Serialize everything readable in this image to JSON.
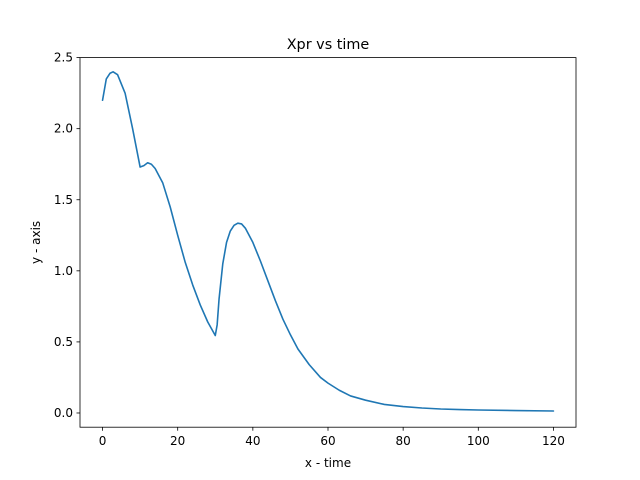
{
  "chart_data": {
    "type": "line",
    "title": "Xpr vs time",
    "xlabel": "x - time",
    "ylabel": "y - axis",
    "xlim": [
      -6,
      126
    ],
    "ylim": [
      -0.1,
      2.5
    ],
    "xticks": [
      0,
      20,
      40,
      60,
      80,
      100,
      120
    ],
    "xtick_labels": [
      "0",
      "20",
      "40",
      "60",
      "80",
      "100",
      "120"
    ],
    "yticks": [
      0.0,
      0.5,
      1.0,
      1.5,
      2.0,
      2.5
    ],
    "ytick_labels": [
      "0.0",
      "0.5",
      "1.0",
      "1.5",
      "2.0",
      "2.5"
    ],
    "grid": false,
    "color": "#1f77b4",
    "series": [
      {
        "x": [
          0,
          1,
          2,
          2.8,
          4,
          6,
          8,
          10,
          11,
          12,
          13,
          14,
          16,
          18,
          20,
          22,
          24,
          26,
          28,
          30,
          30.5,
          31,
          32,
          33,
          34,
          35,
          36,
          37,
          38,
          40,
          42,
          44,
          46,
          48,
          50,
          52,
          55,
          58,
          60,
          63,
          66,
          70,
          75,
          80,
          85,
          90,
          95,
          100,
          110,
          120
        ],
        "y": [
          2.2,
          2.35,
          2.39,
          2.4,
          2.38,
          2.25,
          2.0,
          1.73,
          1.74,
          1.76,
          1.75,
          1.72,
          1.62,
          1.45,
          1.25,
          1.06,
          0.9,
          0.76,
          0.64,
          0.545,
          0.62,
          0.8,
          1.05,
          1.2,
          1.28,
          1.32,
          1.335,
          1.33,
          1.3,
          1.2,
          1.07,
          0.93,
          0.79,
          0.66,
          0.55,
          0.45,
          0.34,
          0.25,
          0.21,
          0.16,
          0.12,
          0.09,
          0.06,
          0.045,
          0.035,
          0.028,
          0.024,
          0.021,
          0.017,
          0.014
        ]
      }
    ]
  }
}
